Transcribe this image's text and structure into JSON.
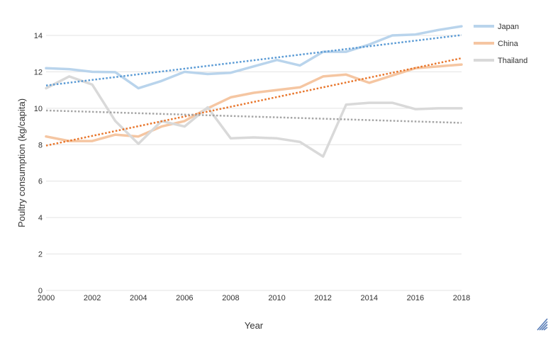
{
  "chart_data": {
    "type": "line",
    "xlabel": "Year",
    "ylabel": "Poultry consumption (kg/capita)",
    "xlim": [
      2000,
      2018
    ],
    "ylim": [
      0,
      15
    ],
    "x_ticks": [
      "2000",
      "2002",
      "2004",
      "2006",
      "2008",
      "2010",
      "2012",
      "2014",
      "2016",
      "2018"
    ],
    "y_ticks": [
      "0",
      "2",
      "4",
      "6",
      "8",
      "10",
      "12",
      "14"
    ],
    "grid": "horizontal",
    "legend_position": "right",
    "x": [
      2000,
      2001,
      2002,
      2003,
      2004,
      2005,
      2006,
      2007,
      2008,
      2009,
      2010,
      2011,
      2012,
      2013,
      2014,
      2015,
      2016,
      2017,
      2018
    ],
    "series": [
      {
        "name": "Japan",
        "color": "#b9d4ec",
        "trend_color": "#5b9bd5",
        "values": [
          12.2,
          12.15,
          12.0,
          11.98,
          11.1,
          11.5,
          12.0,
          11.88,
          11.95,
          12.3,
          12.65,
          12.35,
          13.1,
          13.1,
          13.5,
          14.0,
          14.05,
          14.3,
          14.5
        ],
        "trend": [
          11.25,
          14.02
        ]
      },
      {
        "name": "China",
        "color": "#f5c6a2",
        "trend_color": "#e8762c",
        "values": [
          8.45,
          8.2,
          8.2,
          8.55,
          8.45,
          9.0,
          9.3,
          10.0,
          10.6,
          10.85,
          11.0,
          11.15,
          11.75,
          11.85,
          11.4,
          11.8,
          12.2,
          12.3,
          12.4
        ],
        "trend": [
          7.95,
          12.75
        ]
      },
      {
        "name": "Thailand",
        "color": "#d9d9d9",
        "trend_color": "#a6a6a6",
        "values": [
          11.1,
          11.75,
          11.3,
          9.3,
          8.05,
          9.3,
          9.0,
          10.05,
          8.35,
          8.4,
          8.35,
          8.15,
          7.35,
          10.2,
          10.3,
          10.3,
          9.95,
          10.0,
          10.0
        ],
        "trend": [
          9.88,
          9.2
        ]
      }
    ]
  }
}
